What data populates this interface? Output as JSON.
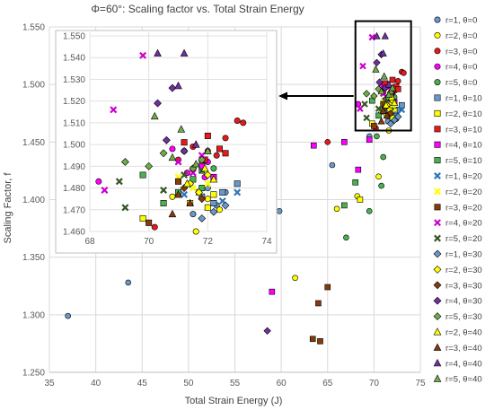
{
  "chart_data": [
    {
      "type": "scatter",
      "title": "Φ=60°: Scaling factor vs. Total Strain Energy",
      "xlabel": "Total Strain Energy (J)",
      "ylabel": "Scaling Factor, f",
      "xlim": [
        35,
        75
      ],
      "ylim": [
        1.25,
        1.55
      ],
      "xticks": [
        "35",
        "40",
        "45",
        "50",
        "55",
        "60",
        "65",
        "70",
        "75"
      ],
      "yticks": [
        "1.250",
        "1.300",
        "1.350",
        "1.400",
        "1.450",
        "1.500",
        "1.550"
      ],
      "grid": true,
      "legend_position": "right",
      "series": [
        {
          "name": "r=1, θ=0",
          "marker": "circle",
          "color": "#6a98c8",
          "points": [
            [
              37.0,
              1.299
            ],
            [
              43.5,
              1.328
            ],
            [
              59.8,
              1.39
            ],
            [
              65.5,
              1.43
            ],
            [
              69.5,
              1.455
            ],
            [
              71.5,
              1.468
            ],
            [
              72.3,
              1.472
            ],
            [
              72.0,
              1.48
            ],
            [
              71.8,
              1.488
            ],
            [
              72.6,
              1.478
            ]
          ]
        },
        {
          "name": "r=2, θ=0",
          "marker": "circle",
          "color": "#ffff00",
          "points": [
            [
              61.5,
              1.332
            ],
            [
              66.0,
              1.392
            ],
            [
              68.2,
              1.403
            ],
            [
              70.5,
              1.42
            ],
            [
              71.6,
              1.46
            ],
            [
              72.4,
              1.47
            ],
            [
              70.8,
              1.476
            ],
            [
              72.0,
              1.475
            ]
          ]
        },
        {
          "name": "r=3, θ=0",
          "marker": "circle",
          "color": "#e41a1c",
          "points": [
            [
              65.0,
              1.45
            ],
            [
              70.2,
              1.462
            ],
            [
              71.0,
              1.493
            ],
            [
              72.3,
              1.495
            ],
            [
              73.0,
              1.511
            ],
            [
              72.6,
              1.503
            ],
            [
              71.5,
              1.499
            ],
            [
              71.2,
              1.497
            ],
            [
              73.2,
              1.51
            ],
            [
              72.0,
              1.497
            ]
          ]
        },
        {
          "name": "r=4, θ=0",
          "marker": "circle",
          "color": "#ff00ff",
          "points": [
            [
              68.3,
              1.483
            ],
            [
              70.8,
              1.498
            ],
            [
              71.5,
              1.489
            ],
            [
              72.0,
              1.492
            ],
            [
              71.9,
              1.485
            ],
            [
              71.3,
              1.487
            ]
          ]
        },
        {
          "name": "r=5, θ=0",
          "marker": "circle",
          "color": "#4caf50",
          "points": [
            [
              67.0,
              1.367
            ],
            [
              69.5,
              1.39
            ],
            [
              70.8,
              1.412
            ],
            [
              71.0,
              1.437
            ],
            [
              70.3,
              1.455
            ],
            [
              71.4,
              1.482
            ],
            [
              71.8,
              1.492
            ],
            [
              72.2,
              1.489
            ]
          ]
        },
        {
          "name": "r=1, θ=10",
          "marker": "square",
          "color": "#6a98c8",
          "points": [
            [
              72.2,
              1.473
            ],
            [
              72.5,
              1.478
            ],
            [
              73.0,
              1.482
            ],
            [
              71.8,
              1.476
            ]
          ]
        },
        {
          "name": "r=2, θ=10",
          "marker": "square",
          "color": "#ffff00",
          "points": [
            [
              68.5,
              1.4
            ],
            [
              69.8,
              1.466
            ],
            [
              71.7,
              1.478
            ],
            [
              71.4,
              1.473
            ],
            [
              72.2,
              1.477
            ],
            [
              72.0,
              1.471
            ]
          ]
        },
        {
          "name": "r=3, θ=10",
          "marker": "square",
          "color": "#e41a1c",
          "points": [
            [
              71.2,
              1.501
            ],
            [
              72.4,
              1.498
            ],
            [
              71.9,
              1.493
            ],
            [
              72.6,
              1.496
            ],
            [
              72.0,
              1.504
            ]
          ]
        },
        {
          "name": "r=4, θ=10",
          "marker": "square",
          "color": "#ff00ff",
          "points": [
            [
              59.0,
              1.32
            ],
            [
              63.5,
              1.447
            ],
            [
              66.8,
              1.45
            ],
            [
              68.3,
              1.426
            ],
            [
              69.5,
              1.452
            ],
            [
              71.8,
              1.49
            ],
            [
              72.2,
              1.485
            ]
          ]
        },
        {
          "name": "r=5, θ=10",
          "marker": "square",
          "color": "#4caf50",
          "points": [
            [
              66.8,
              1.395
            ],
            [
              68.0,
              1.415
            ],
            [
              69.8,
              1.486
            ],
            [
              70.5,
              1.473
            ],
            [
              71.0,
              1.478
            ],
            [
              71.5,
              1.484
            ],
            [
              71.8,
              1.48
            ]
          ]
        },
        {
          "name": "r=1, θ=20",
          "marker": "x",
          "color": "#2e75b6",
          "points": [
            [
              73.0,
              1.478
            ],
            [
              72.5,
              1.474
            ],
            [
              71.2,
              1.477
            ]
          ]
        },
        {
          "name": "r=2, θ=20",
          "marker": "x",
          "color": "#ffff00",
          "points": [
            [
              71.0,
              1.485
            ],
            [
              71.5,
              1.48
            ],
            [
              72.0,
              1.482
            ]
          ]
        },
        {
          "name": "r=3, θ=20",
          "marker": "square",
          "color": "#843c0c",
          "points": [
            [
              63.4,
              1.279
            ],
            [
              64.2,
              1.277
            ],
            [
              65.0,
              1.324
            ],
            [
              64.0,
              1.31
            ],
            [
              70.0,
              1.464
            ],
            [
              71.0,
              1.483
            ]
          ]
        },
        {
          "name": "r=4, θ=20",
          "marker": "x",
          "color": "#cc00cc",
          "points": [
            [
              69.8,
              1.541
            ],
            [
              68.8,
              1.516
            ],
            [
              68.5,
              1.479
            ],
            [
              71.0,
              1.492
            ],
            [
              71.5,
              1.487
            ],
            [
              71.8,
              1.495
            ]
          ]
        },
        {
          "name": "r=5, θ=20",
          "marker": "x",
          "color": "#375623",
          "points": [
            [
              69.0,
              1.483
            ],
            [
              70.5,
              1.479
            ],
            [
              69.2,
              1.471
            ],
            [
              71.8,
              1.488
            ],
            [
              71.2,
              1.486
            ]
          ]
        },
        {
          "name": "r=1, θ=30",
          "marker": "diamond",
          "color": "#6a98c8",
          "points": [
            [
              72.2,
              1.469
            ],
            [
              72.6,
              1.472
            ],
            [
              71.8,
              1.466
            ]
          ]
        },
        {
          "name": "r=2, θ=30",
          "marker": "diamond",
          "color": "#ffff00",
          "points": [
            [
              71.4,
              1.482
            ],
            [
              72.0,
              1.486
            ],
            [
              71.7,
              1.478
            ]
          ]
        },
        {
          "name": "r=3, θ=30",
          "marker": "diamond",
          "color": "#843c0c",
          "points": [
            [
              71.8,
              1.475
            ],
            [
              71.2,
              1.48
            ]
          ]
        },
        {
          "name": "r=4, θ=30",
          "marker": "diamond",
          "color": "#7030a0",
          "points": [
            [
              58.5,
              1.286
            ],
            [
              70.3,
              1.519
            ],
            [
              70.8,
              1.526
            ],
            [
              71.2,
              1.497
            ],
            [
              70.6,
              1.502
            ]
          ]
        },
        {
          "name": "r=5, θ=30",
          "marker": "diamond",
          "color": "#70ad47",
          "points": [
            [
              69.2,
              1.492
            ],
            [
              70.0,
              1.49
            ],
            [
              70.5,
              1.496
            ],
            [
              71.5,
              1.489
            ],
            [
              71.8,
              1.493
            ]
          ]
        },
        {
          "name": "r=2, θ=40",
          "marker": "triangle",
          "color": "#ffff00",
          "points": [
            [
              71.3,
              1.482
            ],
            [
              71.9,
              1.489
            ],
            [
              72.2,
              1.484
            ]
          ]
        },
        {
          "name": "r=3, θ=40",
          "marker": "triangle",
          "color": "#843c0c",
          "points": [
            [
              70.8,
              1.468
            ],
            [
              71.4,
              1.473
            ],
            [
              71.0,
              1.477
            ]
          ]
        },
        {
          "name": "r=4, θ=40",
          "marker": "triangle",
          "color": "#7030a0",
          "points": [
            [
              70.3,
              1.542
            ],
            [
              71.2,
              1.542
            ],
            [
              71.0,
              1.527
            ],
            [
              71.6,
              1.5
            ]
          ]
        },
        {
          "name": "r=5, θ=40",
          "marker": "triangle",
          "color": "#70ad47",
          "points": [
            [
              70.2,
              1.513
            ],
            [
              71.1,
              1.507
            ],
            [
              70.8,
              1.494
            ],
            [
              71.6,
              1.491
            ],
            [
              72.0,
              1.497
            ]
          ]
        }
      ]
    },
    {
      "type": "scatter",
      "title": "",
      "xlabel": "",
      "ylabel": "",
      "xlim": [
        68,
        74
      ],
      "ylim": [
        1.46,
        1.555
      ],
      "xticks": [
        "68",
        "70",
        "72",
        "74"
      ],
      "yticks": [
        "1.460",
        "1.470",
        "1.480",
        "1.490",
        "1.500",
        "1.510",
        "1.520",
        "1.530",
        "1.540",
        "1.550"
      ],
      "grid": true
    }
  ]
}
